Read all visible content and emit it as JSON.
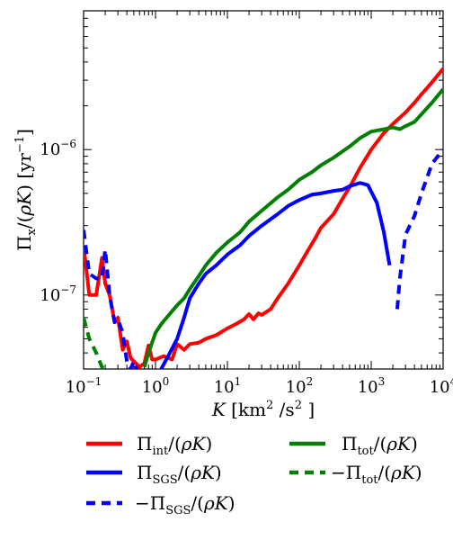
{
  "chart_data": {
    "type": "line",
    "x_scale": "log",
    "y_scale": "log",
    "xlim": [
      0.1,
      10000
    ],
    "ylim": [
      3.1e-08,
      9e-06
    ],
    "grid": false,
    "legend_placement": "below plot",
    "xlabel": {
      "italic": "K",
      "rest": " [km",
      "sup": "2",
      "rest2": " /s",
      "sup2": "2",
      "end": " ]"
    },
    "ylabel": {
      "pi": "Π",
      "sub": "x",
      "rest": "/(",
      "rho": "ρ",
      "K": "K",
      "end": ") [yr",
      "sup": "−1",
      "close": "]"
    },
    "x_tick_labels": [
      {
        "value": 0.1,
        "base": "10",
        "exp": "−1"
      },
      {
        "value": 1,
        "base": "10",
        "exp": "0"
      },
      {
        "value": 10,
        "base": "10",
        "exp": "1"
      },
      {
        "value": 100,
        "base": "10",
        "exp": "2"
      },
      {
        "value": 1000,
        "base": "10",
        "exp": "3"
      },
      {
        "value": 10000,
        "base": "10",
        "exp": "4"
      }
    ],
    "y_tick_labels": [
      {
        "value": 1e-07,
        "base": "10",
        "exp": "−7"
      },
      {
        "value": 1e-06,
        "base": "10",
        "exp": "−6"
      }
    ],
    "series": [
      {
        "name": "Π_int/(ρK)",
        "legend": {
          "pi": "Π",
          "sub": "int",
          "rest": "/(",
          "rho": "ρ",
          "K": "K",
          "end": ")"
        },
        "color": "#ff0000",
        "dash": "solid",
        "x": [
          0.1,
          0.12,
          0.15,
          0.18,
          0.2,
          0.23,
          0.27,
          0.3,
          0.35,
          0.4,
          0.45,
          0.5,
          0.6,
          0.7,
          0.8,
          0.9,
          1.0,
          1.3,
          1.7,
          2.0,
          2.5,
          3.0,
          4.0,
          5.0,
          7.0,
          10,
          13,
          17,
          20,
          23,
          27,
          30,
          40,
          50,
          70,
          100,
          130,
          170,
          200,
          300,
          400,
          500,
          700,
          1000,
          1500,
          2000,
          3000,
          4000,
          5000,
          7000,
          10000
        ],
        "values": [
          2.2e-07,
          1e-07,
          1e-07,
          1.8e-07,
          1.2e-07,
          1e-07,
          6.5e-08,
          7e-08,
          4.2e-08,
          4.8e-08,
          3.7e-08,
          3.5e-08,
          3.2e-08,
          3.4e-08,
          4.5e-08,
          3.6e-08,
          3.6e-08,
          3.8e-08,
          3.6e-08,
          4.6e-08,
          4.2e-08,
          4.6e-08,
          4.7e-08,
          5e-08,
          5.3e-08,
          5.9e-08,
          6.3e-08,
          6.8e-08,
          7.4e-08,
          6.8e-08,
          7.5e-08,
          7.3e-08,
          8e-08,
          9.5e-08,
          1.2e-07,
          1.6e-07,
          2e-07,
          2.5e-07,
          2.9e-07,
          3.6e-07,
          4.6e-07,
          5.5e-07,
          7.5e-07,
          1e-06,
          1.3e-06,
          1.5e-06,
          1.8e-06,
          2.1e-06,
          2.4e-06,
          2.9e-06,
          3.6e-06
        ]
      },
      {
        "name": "Π_SGS/(ρK)",
        "legend": {
          "pi": "Π",
          "sub": "SGS",
          "rest": "/(",
          "rho": "ρ",
          "K": "K",
          "end": ")"
        },
        "color": "#0000ff",
        "dash": "solid",
        "x": [
          1.2,
          1.5,
          2.0,
          2.5,
          3.0,
          4.0,
          5.0,
          7.0,
          10,
          15,
          20,
          30,
          50,
          70,
          100,
          150,
          200,
          300,
          400,
          500,
          700,
          900,
          1200,
          1500,
          1800
        ],
        "values": [
          3.1e-08,
          3.8e-08,
          5e-08,
          7e-08,
          9.5e-08,
          1.2e-07,
          1.4e-07,
          1.6e-07,
          1.9e-07,
          2.2e-07,
          2.55e-07,
          3e-07,
          3.6e-07,
          4.1e-07,
          4.5e-07,
          4.9e-07,
          5e-07,
          5.2e-07,
          5.3e-07,
          5.6e-07,
          5.9e-07,
          5.7e-07,
          4.3e-07,
          2.7e-07,
          1.6e-07
        ]
      },
      {
        "name": "Π_tot/(ρK)",
        "legend": {
          "pi": "Π",
          "sub": "tot",
          "rest": "/(",
          "rho": "ρ",
          "K": "K",
          "end": ")"
        },
        "color": "#007f00",
        "dash": "solid",
        "x": [
          0.7,
          0.8,
          1.0,
          1.2,
          1.5,
          2.0,
          2.5,
          3.0,
          4.0,
          5.0,
          7.0,
          10,
          15,
          20,
          30,
          50,
          70,
          100,
          150,
          200,
          300,
          500,
          700,
          1000,
          1500,
          2000,
          2500,
          3000,
          4000,
          5000,
          7000,
          10000
        ],
        "values": [
          3.2e-08,
          4e-08,
          5.5e-08,
          6.3e-08,
          7.2e-08,
          8.5e-08,
          9.5e-08,
          1.1e-07,
          1.35e-07,
          1.6e-07,
          1.95e-07,
          2.3e-07,
          2.7e-07,
          3.2e-07,
          3.8e-07,
          4.7e-07,
          5.3e-07,
          6.2e-07,
          7e-07,
          7.8e-07,
          8.8e-07,
          1.05e-06,
          1.2e-06,
          1.33e-06,
          1.38e-06,
          1.42e-06,
          1.38e-06,
          1.45e-06,
          1.55e-06,
          1.75e-06,
          2.1e-06,
          2.6e-06
        ]
      },
      {
        "name": "−Π_SGS/(ρK)",
        "legend": {
          "minus": "−",
          "pi": "Π",
          "sub": "SGS",
          "rest": "/(",
          "rho": "ρ",
          "K": "K",
          "end": ")"
        },
        "color": "#0000ff",
        "dash": "dashed",
        "segments": [
          {
            "x": [
              0.1,
              0.12,
              0.15,
              0.18,
              0.2,
              0.23,
              0.27,
              0.3,
              0.35,
              0.4,
              0.45,
              0.5,
              0.55
            ],
            "values": [
              2.8e-07,
              1.4e-07,
              1.3e-07,
              1.3e-07,
              2.05e-07,
              1e-07,
              6.5e-08,
              6.8e-08,
              5.5e-08,
              3.5e-08,
              3.1e-08,
              3.5e-08,
              3.1e-08
            ]
          },
          {
            "x": [
              2300,
              2500,
              3000,
              4000,
              5000,
              7000,
              10000
            ],
            "values": [
              8e-08,
              1.3e-07,
              2.6e-07,
              3.5e-07,
              5e-07,
              8e-07,
              1e-06
            ]
          }
        ]
      },
      {
        "name": "−Π_tot/(ρK)",
        "legend": {
          "minus": "−",
          "pi": "Π",
          "sub": "tot",
          "rest": "/(",
          "rho": "ρ",
          "K": "K",
          "end": ")"
        },
        "color": "#007f00",
        "dash": "dashed",
        "x": [
          0.1,
          0.12,
          0.15,
          0.18,
          0.2
        ],
        "values": [
          7e-08,
          5e-08,
          4e-08,
          3.2e-08,
          3.1e-08
        ]
      }
    ]
  }
}
